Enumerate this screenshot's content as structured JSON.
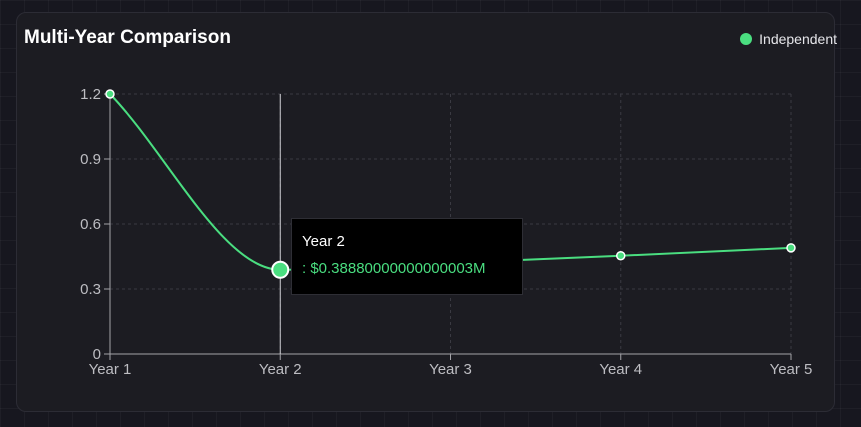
{
  "card": {
    "title": "Multi-Year Comparison"
  },
  "legend": {
    "label": "Independent"
  },
  "tooltip": {
    "label": "Year 2",
    "value_text": ": $0.38880000000000003M"
  },
  "colors": {
    "series": "#4ade80",
    "axis": "#a3a3a8",
    "grid": "#3a3a42",
    "tick_text": "#bdbdc2"
  },
  "chart_data": {
    "type": "line",
    "title": "Multi-Year Comparison",
    "categories": [
      "Year 1",
      "Year 2",
      "Year 3",
      "Year 4",
      "Year 5"
    ],
    "series": [
      {
        "name": "Independent",
        "values": [
          1.2,
          0.3888,
          0.42,
          0.4536,
          0.4899
        ]
      }
    ],
    "yticks": [
      0,
      0.3,
      0.6,
      0.9,
      1.2
    ],
    "ytick_labels": [
      "0",
      "0.3",
      "0.6",
      "0.9",
      "1.2"
    ],
    "ylim": [
      0,
      1.2
    ],
    "grid": true,
    "legend_position": "top-right",
    "active_index": 1
  }
}
